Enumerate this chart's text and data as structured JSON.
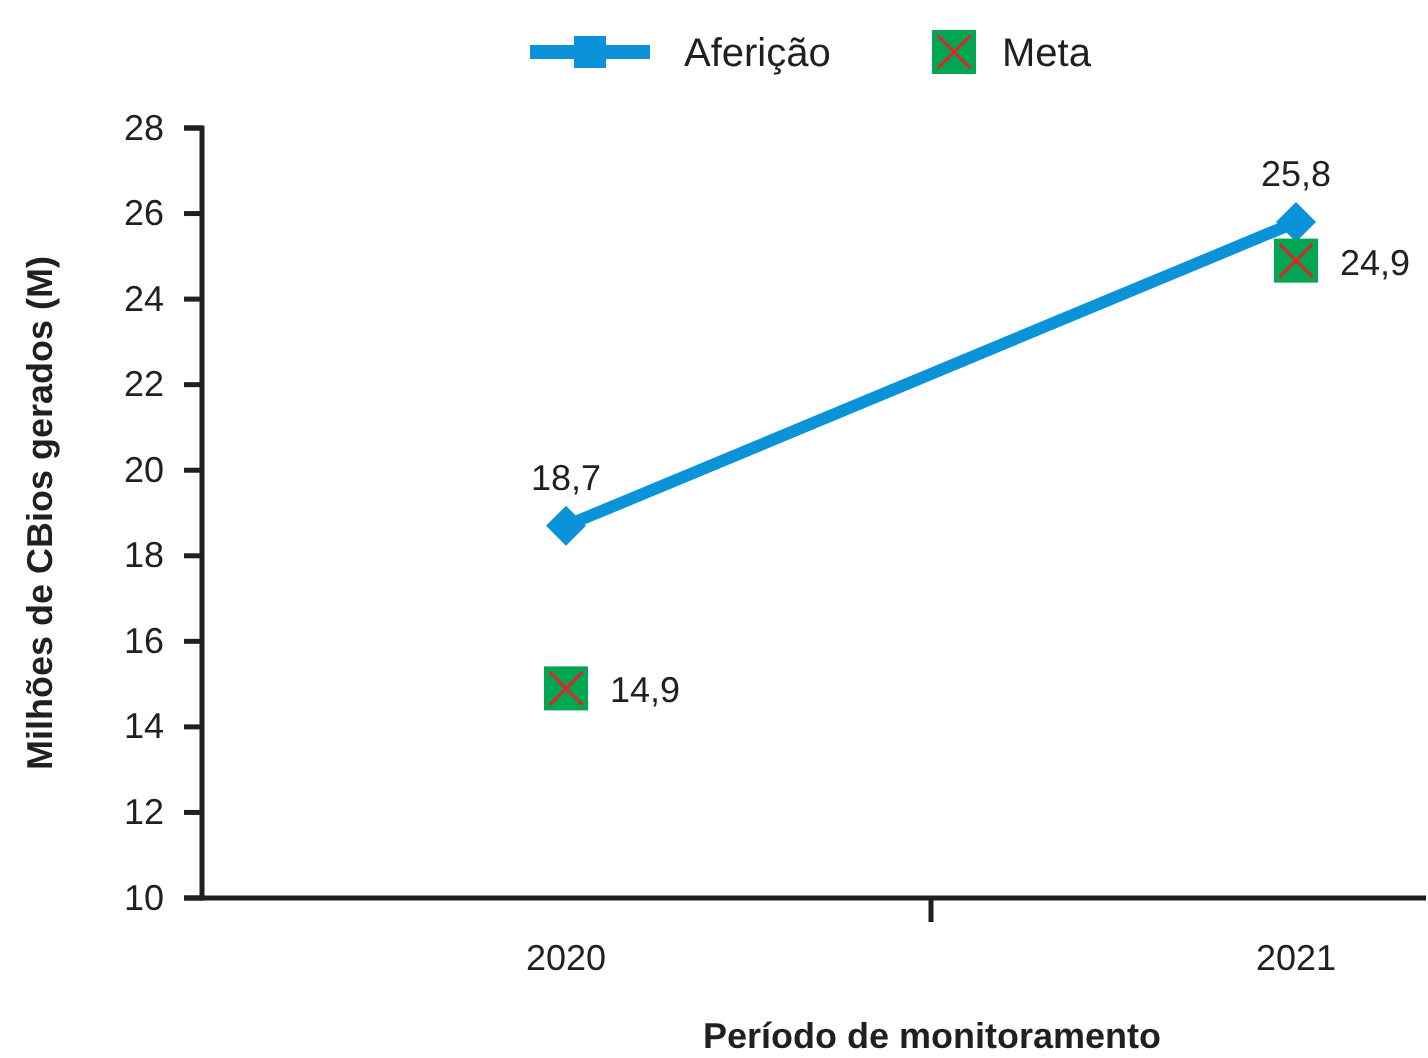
{
  "chart_data": {
    "type": "line",
    "xlabel": "Período de monitoramento",
    "ylabel": "Milhões de CBios gerados (M)",
    "categories": [
      "2020",
      "2021"
    ],
    "series": [
      {
        "name": "Aferição",
        "color": "#0a93d8",
        "marker": "diamond",
        "values": [
          18.7,
          25.8
        ],
        "value_labels": [
          "18,7",
          "25,8"
        ]
      },
      {
        "name": "Meta",
        "type": "scatter",
        "color": "#00a651",
        "marker": "square",
        "values": [
          14.9,
          24.9
        ],
        "value_labels": [
          "14,9",
          "24,9"
        ]
      }
    ],
    "ylim": [
      10,
      28
    ],
    "yticks": [
      10,
      12,
      14,
      16,
      18,
      20,
      22,
      24,
      26,
      28
    ],
    "grid": false,
    "legend": "top"
  }
}
